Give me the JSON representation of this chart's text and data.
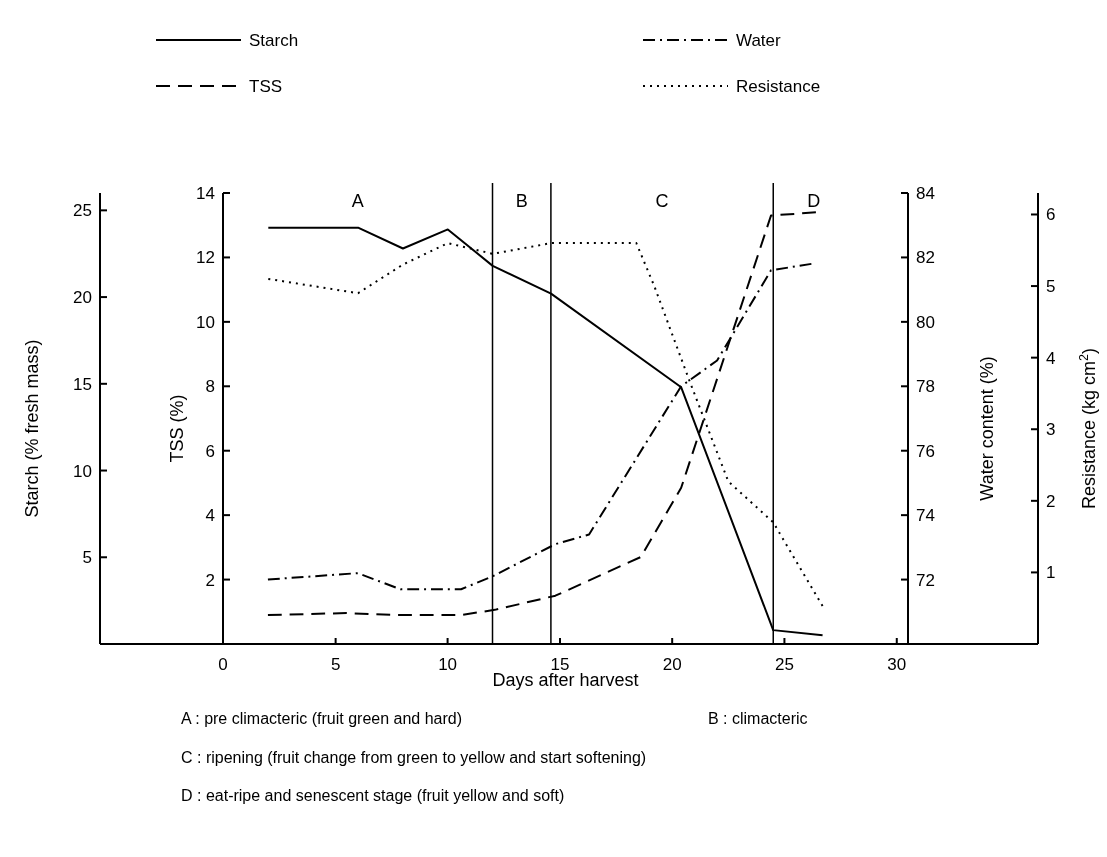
{
  "chart_data": [
    {
      "type": "line",
      "xlabel": "Days after harvest",
      "ylabel": "TSS (%)",
      "y2label": "Water content (%)",
      "xlim": [
        0,
        30.5
      ],
      "xticks": [
        0,
        10,
        20,
        30
      ],
      "ylim": [
        0,
        14
      ],
      "yticks": [
        2,
        4,
        6,
        8,
        10,
        12,
        14
      ],
      "y2lim": [
        70,
        84
      ],
      "y2ticks": [
        72,
        74,
        76,
        78,
        80,
        82,
        84
      ],
      "legend": "top",
      "marker": "none",
      "series": [
        {
          "name": "TSS",
          "color": "#000000",
          "line_style": "dashed",
          "x": [
            2,
            5.5,
            7.6,
            10.6,
            12.1,
            14.8,
            18.6,
            20.4,
            24.4,
            26.4
          ],
          "values": [
            0.9,
            0.96,
            0.9,
            0.9,
            1.06,
            1.5,
            2.7,
            4.85,
            13.3,
            13.4
          ]
        },
        {
          "name": "Water",
          "color": "#000000",
          "line_style": "dashdot",
          "axis": "y2",
          "x": [
            2,
            6,
            7.9,
            10.6,
            12,
            14.8,
            16.3,
            20.4,
            22,
            24.4,
            26.2
          ],
          "values": [
            72,
            72.2,
            71.7,
            71.7,
            72.1,
            73.1,
            73.4,
            78,
            78.8,
            81.6,
            81.8
          ]
        }
      ],
      "ref_lines": [
        {
          "axis": "x",
          "value": 12,
          "color": "#000000"
        },
        {
          "axis": "x",
          "value": 14.6,
          "color": "#000000"
        },
        {
          "axis": "x",
          "value": 24.5,
          "color": "#000000"
        }
      ],
      "annotations": [
        "A",
        "B",
        "C",
        "D",
        "A :  pre climacteric (fruit green and hard)",
        "B :  climacteric",
        "C :  ripening (fruit change from green to yellow and start softening)",
        "D :  eat-ripe and senescent stage (fruit yellow and soft)"
      ]
    },
    {
      "type": "line",
      "ylabel": "Starch (% fresh mass)",
      "y2label": "Resistance (kg cm$^{2}$)",
      "xlim": [
        -5.5,
        36.3
      ],
      "xticks": [
        5,
        15,
        25
      ],
      "ylim": [
        0,
        26
      ],
      "yticks": [
        5,
        10,
        15,
        20,
        25
      ],
      "y2lim": [
        0,
        6.3
      ],
      "y2ticks": [
        1,
        2,
        3,
        4,
        5,
        6
      ],
      "legend": "top",
      "marker": "none",
      "series": [
        {
          "name": "Starch",
          "color": "#000000",
          "line_style": "solid",
          "x": [
            2,
            6,
            8,
            10,
            12,
            14.6,
            20.4,
            24.5,
            26.7
          ],
          "values": [
            24,
            24,
            22.8,
            23.9,
            21.8,
            20.2,
            14.8,
            0.8,
            0.5
          ]
        },
        {
          "name": "Resistance",
          "color": "#000000",
          "line_style": "dotted",
          "axis": "y2",
          "x": [
            2,
            6,
            8,
            10,
            12,
            14.6,
            18.4,
            19.2,
            20.8,
            22.5,
            24.5,
            26.7
          ],
          "values": [
            5.1,
            4.9,
            5.3,
            5.6,
            5.45,
            5.6,
            5.6,
            5,
            3.65,
            2.27,
            1.7,
            0.53
          ]
        }
      ]
    }
  ]
}
